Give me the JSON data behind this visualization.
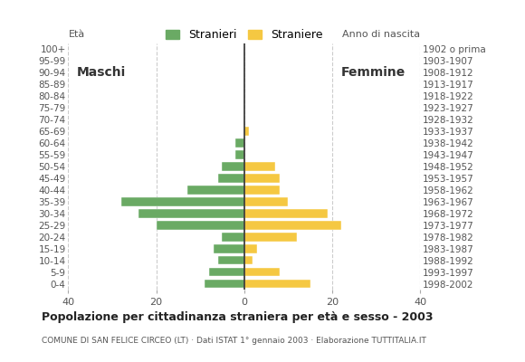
{
  "age_groups": [
    "0-4",
    "5-9",
    "10-14",
    "15-19",
    "20-24",
    "25-29",
    "30-34",
    "35-39",
    "40-44",
    "45-49",
    "50-54",
    "55-59",
    "60-64",
    "65-69",
    "70-74",
    "75-79",
    "80-84",
    "85-89",
    "90-94",
    "95-99",
    "100+"
  ],
  "birth_years": [
    "1998-2002",
    "1993-1997",
    "1988-1992",
    "1983-1987",
    "1978-1982",
    "1973-1977",
    "1968-1972",
    "1963-1967",
    "1958-1962",
    "1953-1957",
    "1948-1952",
    "1943-1947",
    "1938-1942",
    "1933-1937",
    "1928-1932",
    "1923-1927",
    "1918-1922",
    "1913-1917",
    "1908-1912",
    "1903-1907",
    "1902 o prima"
  ],
  "males": [
    9,
    8,
    6,
    7,
    5,
    20,
    24,
    28,
    13,
    6,
    5,
    2,
    2,
    0,
    0,
    0,
    0,
    0,
    0,
    0,
    0
  ],
  "females": [
    15,
    8,
    2,
    3,
    12,
    22,
    19,
    10,
    8,
    8,
    7,
    0,
    0,
    1,
    0,
    0,
    0,
    0,
    0,
    0,
    0
  ],
  "male_color": "#6aaa64",
  "female_color": "#f5c842",
  "xlim": 40,
  "title": "Popolazione per cittadinanza straniera per età e sesso - 2003",
  "subtitle": "COMUNE DI SAN FELICE CIRCEO (LT) · Dati ISTAT 1° gennaio 2003 · Elaborazione TUTTITALIA.IT",
  "legend_male": "Stranieri",
  "legend_female": "Straniere",
  "ylabel_left": "Età",
  "ylabel_right": "Anno di nascita",
  "label_maschi": "Maschi",
  "label_femmine": "Femmine",
  "xticks": [
    -40,
    -20,
    0,
    20,
    40
  ],
  "xticklabels": [
    "40",
    "20",
    "0",
    "20",
    "40"
  ],
  "grid_color": "#cccccc",
  "background_color": "#ffffff",
  "bar_height": 0.75
}
